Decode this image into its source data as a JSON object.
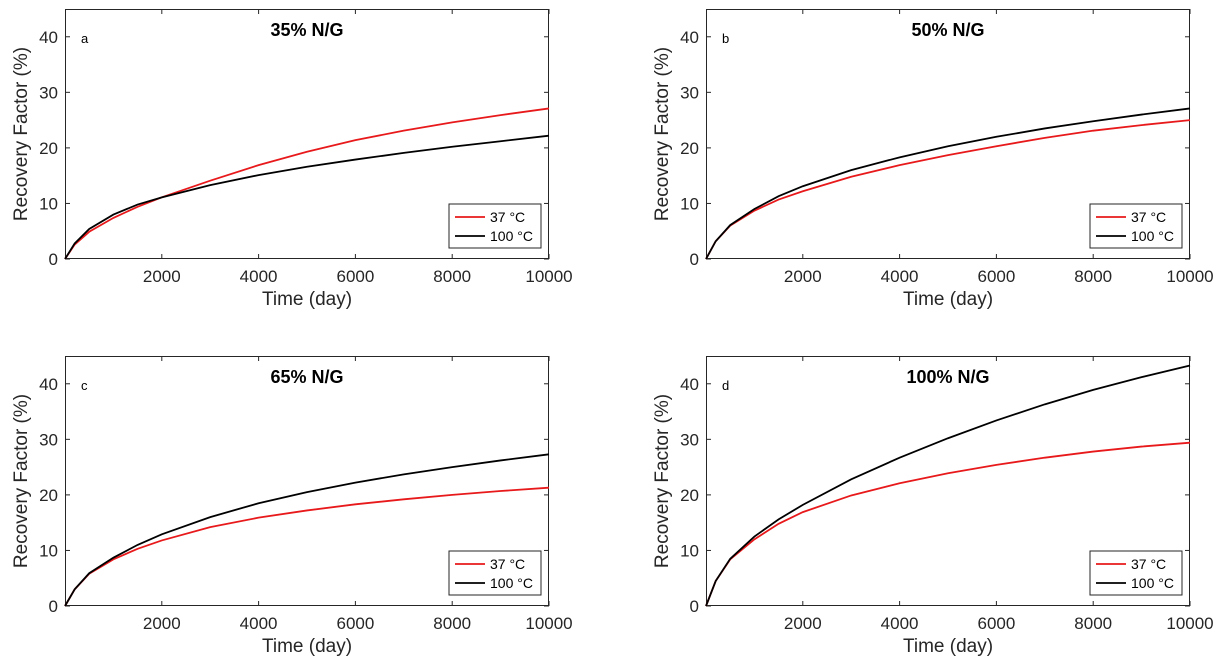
{
  "chart_data": [
    {
      "type": "line",
      "panel_letter": "a",
      "title": "35% N/G",
      "xlabel": "Time (day)",
      "ylabel": "Recovery Factor (%)",
      "xlim": [
        0,
        10000
      ],
      "ylim": [
        0,
        45
      ],
      "xticks": [
        2000,
        4000,
        6000,
        8000,
        10000
      ],
      "yticks": [
        0,
        10,
        20,
        30,
        40
      ],
      "grid": false,
      "legend_position": "bottom-right",
      "x": [
        0,
        200,
        500,
        1000,
        1500,
        2000,
        3000,
        4000,
        5000,
        6000,
        7000,
        8000,
        9000,
        10000
      ],
      "series": [
        {
          "name": "37 °C",
          "color": "#e8191b",
          "values": [
            0,
            2.6,
            4.9,
            7.4,
            9.4,
            11.1,
            14.1,
            16.9,
            19.3,
            21.4,
            23.1,
            24.6,
            25.9,
            27.1
          ]
        },
        {
          "name": "100 °C",
          "color": "#000000",
          "values": [
            0,
            2.8,
            5.4,
            8.0,
            9.8,
            11.1,
            13.3,
            15.1,
            16.6,
            17.9,
            19.1,
            20.2,
            21.2,
            22.2
          ]
        }
      ]
    },
    {
      "type": "line",
      "panel_letter": "b",
      "title": "50% N/G",
      "xlabel": "Time (day)",
      "ylabel": "Recovery Factor (%)",
      "xlim": [
        0,
        10000
      ],
      "ylim": [
        0,
        45
      ],
      "xticks": [
        2000,
        4000,
        6000,
        8000,
        10000
      ],
      "yticks": [
        0,
        10,
        20,
        30,
        40
      ],
      "grid": false,
      "legend_position": "bottom-right",
      "x": [
        0,
        200,
        500,
        1000,
        1500,
        2000,
        3000,
        4000,
        5000,
        6000,
        7000,
        8000,
        9000,
        10000
      ],
      "series": [
        {
          "name": "37 °C",
          "color": "#e8191b",
          "values": [
            0,
            3.2,
            6.0,
            8.7,
            10.7,
            12.2,
            14.8,
            16.9,
            18.7,
            20.3,
            21.8,
            23.1,
            24.1,
            25.0
          ]
        },
        {
          "name": "100 °C",
          "color": "#000000",
          "values": [
            0,
            3.2,
            6.1,
            9.0,
            11.3,
            13.1,
            16.0,
            18.3,
            20.3,
            22.0,
            23.5,
            24.8,
            26.0,
            27.1
          ]
        }
      ]
    },
    {
      "type": "line",
      "panel_letter": "c",
      "title": "65% N/G",
      "xlabel": "Time (day)",
      "ylabel": "Recovery Factor (%)",
      "xlim": [
        0,
        10000
      ],
      "ylim": [
        0,
        45
      ],
      "xticks": [
        2000,
        4000,
        6000,
        8000,
        10000
      ],
      "yticks": [
        0,
        10,
        20,
        30,
        40
      ],
      "grid": false,
      "legend_position": "bottom-right",
      "x": [
        0,
        200,
        500,
        1000,
        1500,
        2000,
        3000,
        4000,
        5000,
        6000,
        7000,
        8000,
        9000,
        10000
      ],
      "series": [
        {
          "name": "37 °C",
          "color": "#e8191b",
          "values": [
            0,
            3.0,
            5.8,
            8.4,
            10.3,
            11.8,
            14.2,
            15.9,
            17.2,
            18.3,
            19.2,
            20.0,
            20.7,
            21.3
          ]
        },
        {
          "name": "100 °C",
          "color": "#000000",
          "values": [
            0,
            3.0,
            5.9,
            8.7,
            11.0,
            12.9,
            16.0,
            18.5,
            20.5,
            22.2,
            23.7,
            25.0,
            26.2,
            27.3
          ]
        }
      ]
    },
    {
      "type": "line",
      "panel_letter": "d",
      "title": "100% N/G",
      "xlabel": "Time (day)",
      "ylabel": "Recovery Factor (%)",
      "xlim": [
        0,
        10000
      ],
      "ylim": [
        0,
        45
      ],
      "xticks": [
        2000,
        4000,
        6000,
        8000,
        10000
      ],
      "yticks": [
        0,
        10,
        20,
        30,
        40
      ],
      "grid": false,
      "legend_position": "bottom-right",
      "x": [
        0,
        200,
        500,
        1000,
        1500,
        2000,
        3000,
        4000,
        5000,
        6000,
        7000,
        8000,
        9000,
        10000
      ],
      "series": [
        {
          "name": "37 °C",
          "color": "#e8191b",
          "values": [
            0,
            4.5,
            8.4,
            12.0,
            14.8,
            16.9,
            19.9,
            22.1,
            23.9,
            25.4,
            26.7,
            27.8,
            28.7,
            29.4
          ]
        },
        {
          "name": "100 °C",
          "color": "#000000",
          "values": [
            0,
            4.5,
            8.5,
            12.5,
            15.6,
            18.2,
            22.8,
            26.7,
            30.2,
            33.4,
            36.3,
            38.9,
            41.2,
            43.3
          ]
        }
      ]
    }
  ]
}
